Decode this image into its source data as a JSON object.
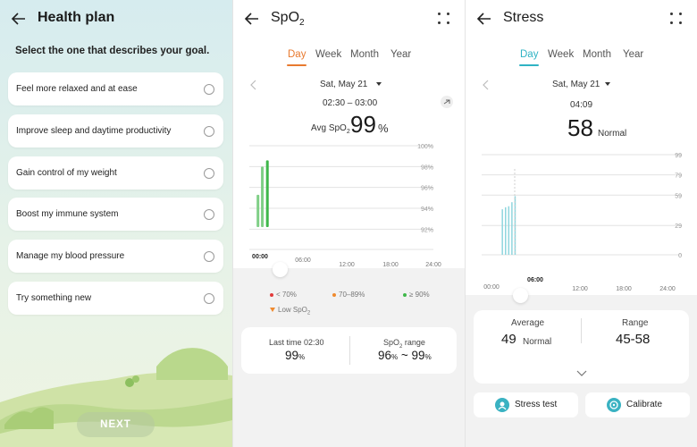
{
  "health_plan": {
    "title": "Health plan",
    "prompt": "Select the one that describes your goal.",
    "options": [
      "Feel more relaxed and at ease",
      "Improve sleep and daytime productivity",
      "Gain control of my weight",
      "Boost my immune system",
      "Manage my blood pressure",
      "Try something new"
    ],
    "next_label": "NEXT"
  },
  "spo2": {
    "title_main": "SpO",
    "title_sub": "2",
    "tabs": [
      "Day",
      "Week",
      "Month",
      "Year"
    ],
    "active_tab": "Day",
    "accent_color": "#e87a2f",
    "date": "Sat, May 21",
    "time_range": "02:30 – 03:00",
    "avg_label": "Avg SpO",
    "avg_label_sub": "2",
    "avg_value": "99",
    "avg_unit": "%",
    "chart_data": {
      "type": "bar",
      "y_tick_labels": [
        "100%",
        "98%",
        "96%",
        "94%",
        "92%"
      ],
      "ylim": [
        91,
        100
      ],
      "x_tick_labels": [
        "00:00",
        "06:00",
        "12:00",
        "18:00",
        "24:00"
      ],
      "bars": [
        {
          "x": 1.2,
          "low": 92.2,
          "high": 95.3,
          "color": "#7fcf86"
        },
        {
          "x": 1.8,
          "low": 92.2,
          "high": 98.0,
          "color": "#7fcf86"
        },
        {
          "x": 2.5,
          "low": 92.2,
          "high": 98.6,
          "color": "#3fb84a"
        }
      ],
      "xlim": [
        0,
        24
      ]
    },
    "legend": [
      {
        "label": "< 70%",
        "color": "#e23b3b"
      },
      {
        "label": "70–89%",
        "color": "#ef8a2e"
      },
      {
        "label": "≥ 90%",
        "color": "#3fb84a"
      },
      {
        "label": "Low SpO",
        "sub": "2",
        "color": "#ef8a2e"
      }
    ],
    "card": {
      "last_label": "Last time 02:30",
      "last_value": "99",
      "last_unit": "%",
      "range_label": "SpO",
      "range_label_sub": "2",
      "range_label_tail": " range",
      "range_low": "96",
      "range_high": "99",
      "range_unit": "%",
      "range_sep": " ~ "
    }
  },
  "stress": {
    "title": "Stress",
    "tabs": [
      "Day",
      "Week",
      "Month",
      "Year"
    ],
    "active_tab": "Day",
    "accent_color": "#2fb3c4",
    "date": "Sat, May 21",
    "time": "04:09",
    "value": "58",
    "level": "Normal",
    "chart_data": {
      "type": "bar",
      "y_tick_labels": [
        "99",
        "79",
        "59",
        "29",
        "0"
      ],
      "ylim": [
        0,
        99
      ],
      "x_tick_labels": [
        "00:00",
        "06:00",
        "12:00",
        "18:00",
        "24:00"
      ],
      "xlim": [
        0,
        24
      ],
      "bars": [
        {
          "x": 2.6,
          "value": 45
        },
        {
          "x": 3.0,
          "value": 47
        },
        {
          "x": 3.4,
          "value": 48
        },
        {
          "x": 3.8,
          "value": 52
        },
        {
          "x": 4.2,
          "value": 58
        }
      ],
      "bar_color": "#8fd6de",
      "highlight_x": 4.15,
      "highlight_label": "06:00"
    },
    "card": {
      "avg_label": "Average",
      "avg_value": "49",
      "avg_level": "Normal",
      "range_label": "Range",
      "range_value": "45-58"
    },
    "buttons": {
      "stress_test": "Stress test",
      "calibrate": "Calibrate"
    }
  }
}
